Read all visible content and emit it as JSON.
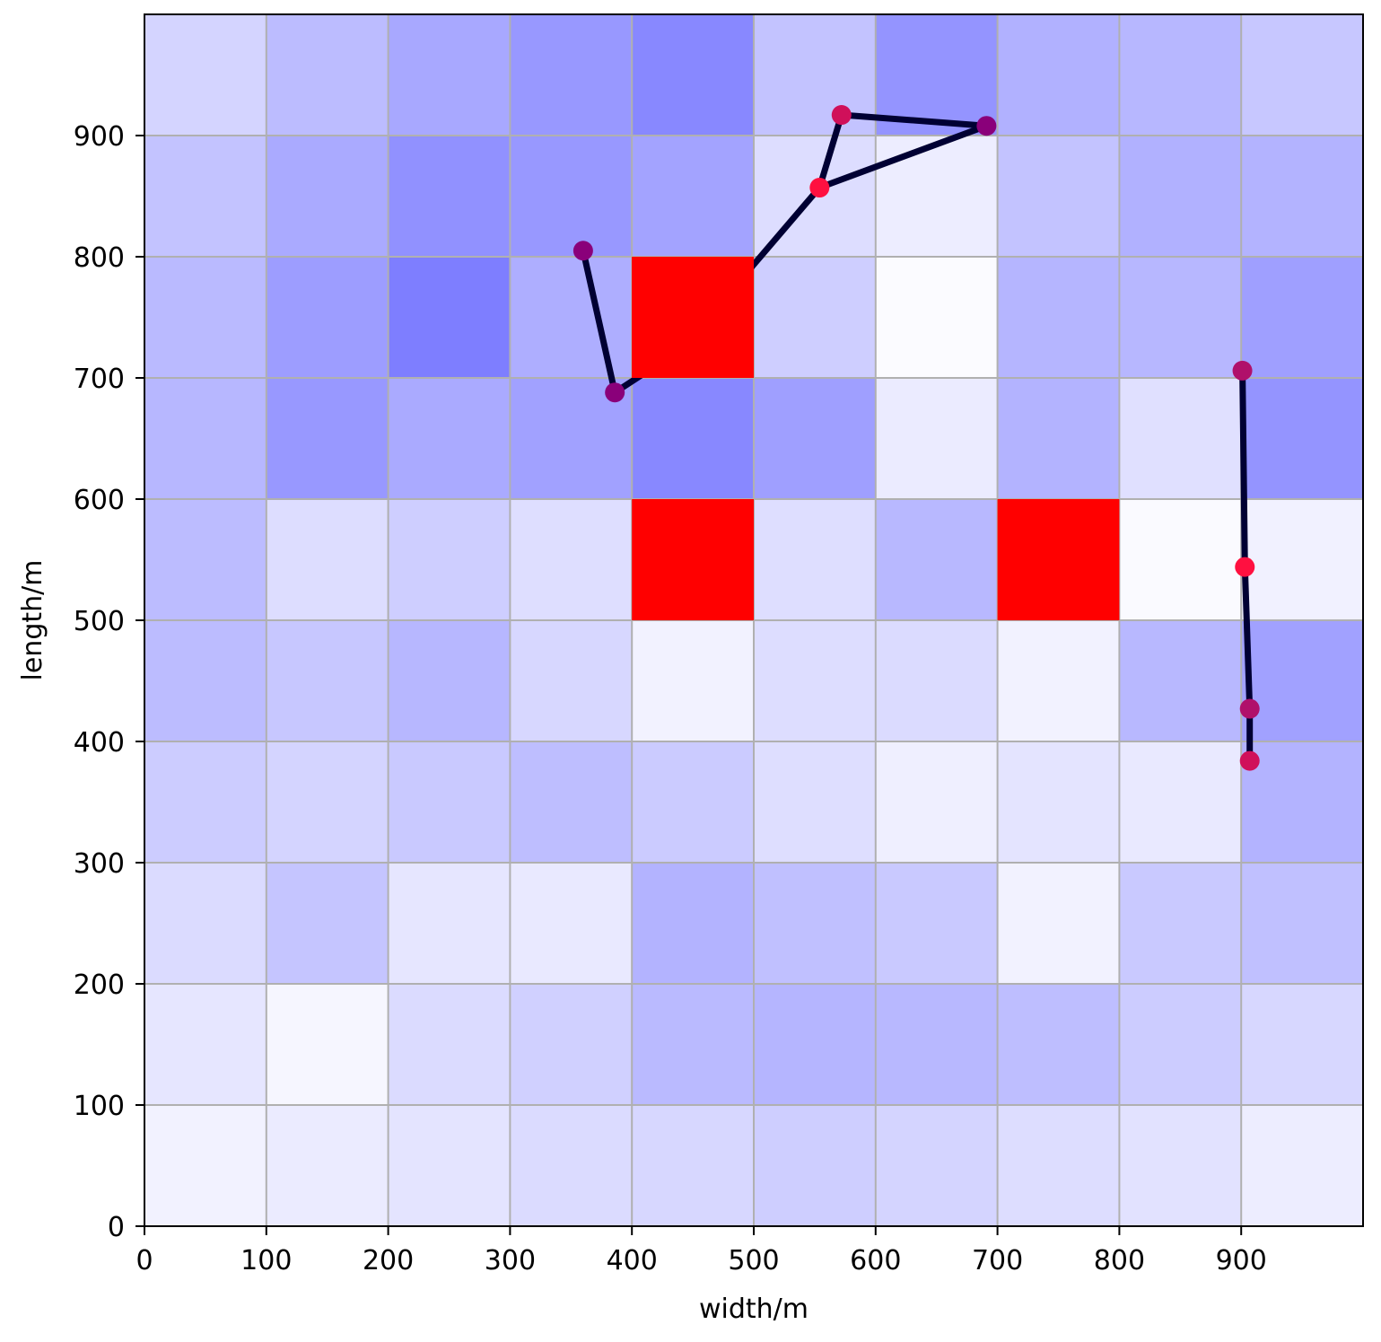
{
  "chart_data": {
    "type": "heatmap",
    "title": "",
    "xlabel": "width/m",
    "ylabel": "length/m",
    "xlim": [
      0,
      1000
    ],
    "ylim": [
      0,
      1000
    ],
    "grid": true,
    "cell_size": 100,
    "x_ticks": [
      0,
      100,
      200,
      300,
      400,
      500,
      600,
      700,
      800,
      900
    ],
    "y_ticks": [
      0,
      100,
      200,
      300,
      400,
      500,
      600,
      700,
      800,
      900
    ],
    "colors": {
      "low": "#ffffff",
      "high": "#4a4aff",
      "obstacle": "#ff0000",
      "path": "#000033",
      "waypoint": "#d0105a",
      "waypoint_alt": "#8a007a"
    },
    "intensity_rows_top_to_bottom": [
      [
        0.24,
        0.37,
        0.48,
        0.57,
        0.66,
        0.33,
        0.59,
        0.43,
        0.4,
        0.31
      ],
      [
        0.33,
        0.47,
        0.61,
        0.57,
        0.51,
        0.19,
        0.1,
        0.33,
        0.43,
        0.42
      ],
      [
        0.38,
        0.54,
        0.71,
        0.45,
        1.0,
        0.27,
        0.02,
        0.41,
        0.4,
        0.53
      ],
      [
        0.4,
        0.57,
        0.47,
        0.52,
        0.66,
        0.53,
        0.11,
        0.42,
        0.17,
        0.59
      ],
      [
        0.37,
        0.19,
        0.27,
        0.18,
        1.0,
        0.18,
        0.39,
        1.0,
        0.03,
        0.08
      ],
      [
        0.37,
        0.31,
        0.4,
        0.22,
        0.07,
        0.19,
        0.2,
        0.07,
        0.39,
        0.52
      ],
      [
        0.28,
        0.24,
        0.3,
        0.36,
        0.29,
        0.18,
        0.09,
        0.15,
        0.12,
        0.42
      ],
      [
        0.2,
        0.32,
        0.14,
        0.12,
        0.42,
        0.35,
        0.3,
        0.07,
        0.3,
        0.35
      ],
      [
        0.14,
        0.05,
        0.2,
        0.26,
        0.38,
        0.41,
        0.39,
        0.36,
        0.28,
        0.22
      ],
      [
        0.07,
        0.11,
        0.15,
        0.2,
        0.22,
        0.27,
        0.24,
        0.19,
        0.16,
        0.1
      ]
    ],
    "obstacles": [
      {
        "x": 400,
        "y": 700
      },
      {
        "x": 400,
        "y": 500
      },
      {
        "x": 700,
        "y": 500
      }
    ],
    "paths": [
      {
        "points": [
          [
            360,
            805
          ],
          [
            386,
            688
          ],
          [
            450,
            730
          ],
          [
            497,
            790
          ],
          [
            554,
            857
          ],
          [
            572,
            917
          ],
          [
            691,
            908
          ],
          [
            554,
            857
          ]
        ]
      },
      {
        "points": [
          [
            901,
            706
          ],
          [
            903,
            544
          ],
          [
            907,
            427
          ],
          [
            907,
            384
          ]
        ]
      }
    ],
    "waypoints": [
      {
        "x": 360,
        "y": 805,
        "color": "#8a007a"
      },
      {
        "x": 386,
        "y": 688,
        "color": "#8a007a"
      },
      {
        "x": 554,
        "y": 857,
        "color": "#ff1040"
      },
      {
        "x": 572,
        "y": 917,
        "color": "#d0105a"
      },
      {
        "x": 691,
        "y": 908,
        "color": "#8a007a"
      },
      {
        "x": 901,
        "y": 706,
        "color": "#b0106a"
      },
      {
        "x": 903,
        "y": 544,
        "color": "#ff1040"
      },
      {
        "x": 907,
        "y": 427,
        "color": "#b0106a"
      },
      {
        "x": 907,
        "y": 384,
        "color": "#d0105a"
      }
    ]
  }
}
